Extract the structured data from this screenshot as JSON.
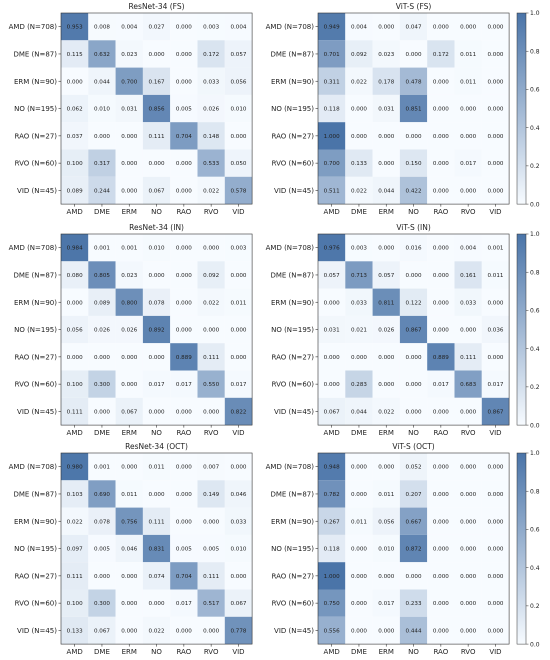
{
  "row_labels": [
    "AMD (N=708)",
    "DME (N=87)",
    "ERM (N=90)",
    "NO (N=195)",
    "RAO (N=27)",
    "RVO (N=60)",
    "VID (N=45)"
  ],
  "col_labels": [
    "AMD",
    "DME",
    "ERM",
    "NO",
    "RAO",
    "RVO",
    "VID"
  ],
  "colormap": {
    "low": "#f7fbff",
    "high": "#4a74a8"
  },
  "colorbar": {
    "ticks": [
      "0.0",
      "0.2",
      "0.4",
      "0.6",
      "0.8",
      "1.0"
    ]
  },
  "chart_data": [
    {
      "type": "heatmap",
      "title": "ResNet-34 (FS)",
      "values": [
        [
          0.953,
          0.008,
          0.004,
          0.027,
          0.0,
          0.003,
          0.004
        ],
        [
          0.115,
          0.632,
          0.023,
          0.0,
          0.0,
          0.172,
          0.057
        ],
        [
          0.0,
          0.044,
          0.7,
          0.167,
          0.0,
          0.033,
          0.056
        ],
        [
          0.062,
          0.01,
          0.031,
          0.856,
          0.005,
          0.026,
          0.01
        ],
        [
          0.037,
          0.0,
          0.0,
          0.111,
          0.704,
          0.148,
          0.0
        ],
        [
          0.1,
          0.317,
          0.0,
          0.0,
          0.0,
          0.533,
          0.05
        ],
        [
          0.089,
          0.244,
          0.0,
          0.067,
          0.0,
          0.022,
          0.578
        ]
      ]
    },
    {
      "type": "heatmap",
      "title": "ViT-S (FS)",
      "values": [
        [
          0.949,
          0.004,
          0.0,
          0.047,
          0.0,
          0.0,
          0.0
        ],
        [
          0.701,
          0.092,
          0.023,
          0.0,
          0.172,
          0.011,
          0.0
        ],
        [
          0.311,
          0.022,
          0.178,
          0.478,
          0.0,
          0.011,
          0.0
        ],
        [
          0.118,
          0.0,
          0.031,
          0.851,
          0.0,
          0.0,
          0.0
        ],
        [
          1.0,
          0.0,
          0.0,
          0.0,
          0.0,
          0.0,
          0.0
        ],
        [
          0.7,
          0.133,
          0.0,
          0.15,
          0.0,
          0.017,
          0.0
        ],
        [
          0.511,
          0.022,
          0.044,
          0.422,
          0.0,
          0.0,
          0.0
        ]
      ]
    },
    {
      "type": "heatmap",
      "title": "ResNet-34 (IN)",
      "values": [
        [
          0.984,
          0.001,
          0.001,
          0.01,
          0.0,
          0.0,
          0.003
        ],
        [
          0.08,
          0.805,
          0.023,
          0.0,
          0.0,
          0.092,
          0.0
        ],
        [
          0.0,
          0.089,
          0.8,
          0.078,
          0.0,
          0.022,
          0.011
        ],
        [
          0.056,
          0.026,
          0.026,
          0.892,
          0.0,
          0.0,
          0.0
        ],
        [
          0.0,
          0.0,
          0.0,
          0.0,
          0.889,
          0.111,
          0.0
        ],
        [
          0.1,
          0.3,
          0.0,
          0.017,
          0.017,
          0.55,
          0.017
        ],
        [
          0.111,
          0.0,
          0.067,
          0.0,
          0.0,
          0.0,
          0.822
        ]
      ]
    },
    {
      "type": "heatmap",
      "title": "ViT-S (IN)",
      "values": [
        [
          0.976,
          0.003,
          0.0,
          0.016,
          0.0,
          0.004,
          0.001
        ],
        [
          0.057,
          0.713,
          0.057,
          0.0,
          0.0,
          0.161,
          0.011
        ],
        [
          0.0,
          0.033,
          0.811,
          0.122,
          0.0,
          0.033,
          0.0
        ],
        [
          0.031,
          0.021,
          0.026,
          0.867,
          0.0,
          0.0,
          0.036
        ],
        [
          0.0,
          0.0,
          0.0,
          0.0,
          0.889,
          0.111,
          0.0
        ],
        [
          0.0,
          0.283,
          0.0,
          0.0,
          0.017,
          0.683,
          0.017
        ],
        [
          0.067,
          0.044,
          0.022,
          0.0,
          0.0,
          0.0,
          0.867
        ]
      ]
    },
    {
      "type": "heatmap",
      "title": "ResNet-34 (OCT)",
      "values": [
        [
          0.98,
          0.001,
          0.0,
          0.011,
          0.0,
          0.007,
          0.0
        ],
        [
          0.103,
          0.69,
          0.011,
          0.0,
          0.0,
          0.149,
          0.046
        ],
        [
          0.022,
          0.078,
          0.756,
          0.111,
          0.0,
          0.0,
          0.033
        ],
        [
          0.097,
          0.005,
          0.046,
          0.831,
          0.005,
          0.005,
          0.01
        ],
        [
          0.111,
          0.0,
          0.0,
          0.074,
          0.704,
          0.111,
          0.0
        ],
        [
          0.1,
          0.3,
          0.0,
          0.0,
          0.017,
          0.517,
          0.067
        ],
        [
          0.133,
          0.067,
          0.0,
          0.022,
          0.0,
          0.0,
          0.778
        ]
      ]
    },
    {
      "type": "heatmap",
      "title": "ViT-S (OCT)",
      "values": [
        [
          0.948,
          0.0,
          0.0,
          0.052,
          0.0,
          0.0,
          0.0
        ],
        [
          0.782,
          0.0,
          0.011,
          0.207,
          0.0,
          0.0,
          0.0
        ],
        [
          0.267,
          0.011,
          0.056,
          0.667,
          0.0,
          0.0,
          0.0
        ],
        [
          0.118,
          0.0,
          0.01,
          0.872,
          0.0,
          0.0,
          0.0
        ],
        [
          1.0,
          0.0,
          0.0,
          0.0,
          0.0,
          0.0,
          0.0
        ],
        [
          0.75,
          0.0,
          0.017,
          0.233,
          0.0,
          0.0,
          0.0
        ],
        [
          0.556,
          0.0,
          0.0,
          0.444,
          0.0,
          0.0,
          0.0
        ]
      ]
    }
  ]
}
